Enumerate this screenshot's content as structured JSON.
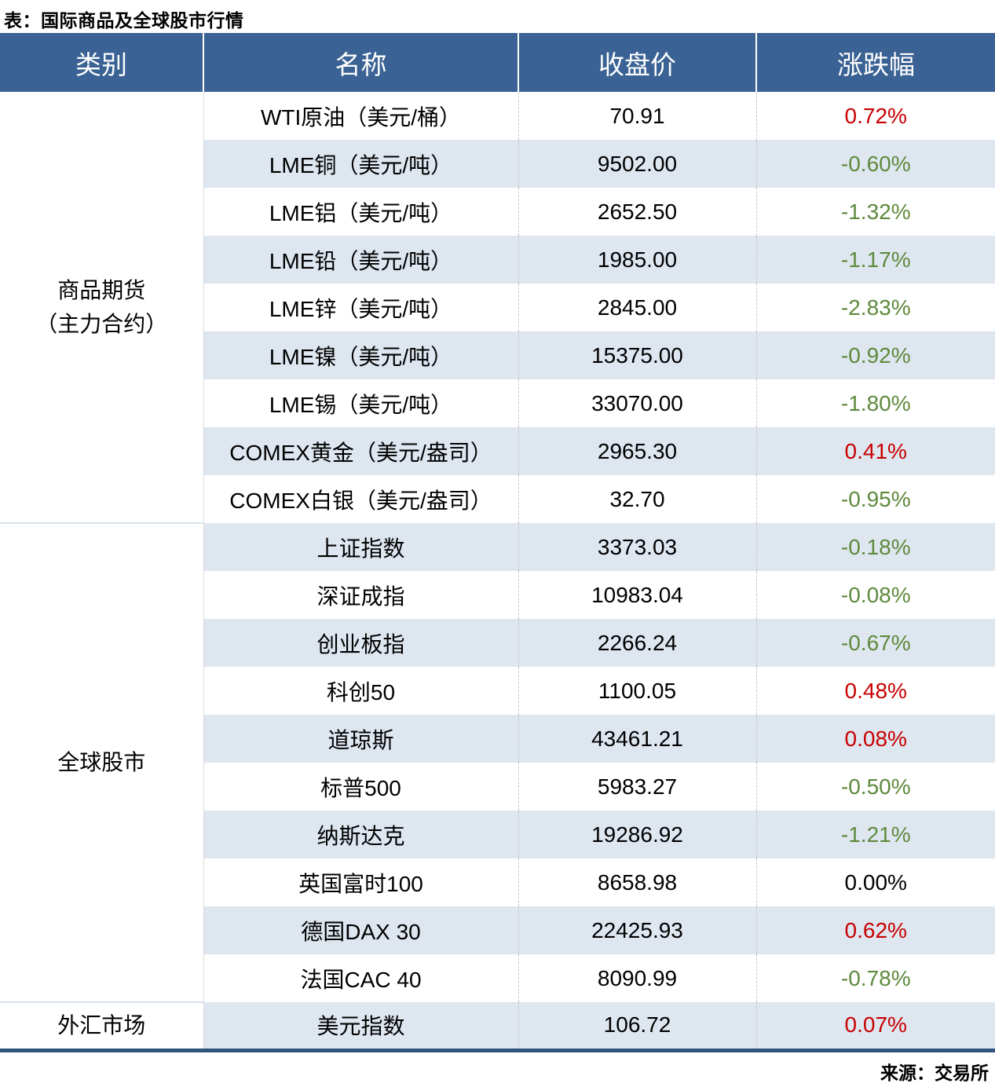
{
  "title": "表：国际商品及全球股市行情",
  "source": "来源：交易所",
  "colors": {
    "header_bg": "#3A6294",
    "stripe_row": "#DEE6F0",
    "up_red": "#C80000",
    "down_green": "#5E8A3C",
    "bottom_border": "#2F567A"
  },
  "table": {
    "headers": [
      "类别",
      "名称",
      "收盘价",
      "涨跌幅"
    ],
    "groups": [
      {
        "category_lines": [
          "商品期货",
          "（主力合约）"
        ],
        "rows": [
          {
            "name": "WTI原油（美元/桶）",
            "close": "70.91",
            "change": "0.72%",
            "direction": "up"
          },
          {
            "name": "LME铜（美元/吨）",
            "close": "9502.00",
            "change": "-0.60%",
            "direction": "down"
          },
          {
            "name": "LME铝（美元/吨）",
            "close": "2652.50",
            "change": "-1.32%",
            "direction": "down"
          },
          {
            "name": "LME铅（美元/吨）",
            "close": "1985.00",
            "change": "-1.17%",
            "direction": "down"
          },
          {
            "name": "LME锌（美元/吨）",
            "close": "2845.00",
            "change": "-2.83%",
            "direction": "down"
          },
          {
            "name": "LME镍（美元/吨）",
            "close": "15375.00",
            "change": "-0.92%",
            "direction": "down"
          },
          {
            "name": "LME锡（美元/吨）",
            "close": "33070.00",
            "change": "-1.80%",
            "direction": "down"
          },
          {
            "name": "COMEX黄金（美元/盎司）",
            "close": "2965.30",
            "change": "0.41%",
            "direction": "up"
          },
          {
            "name": "COMEX白银（美元/盎司）",
            "close": "32.70",
            "change": "-0.95%",
            "direction": "down"
          }
        ]
      },
      {
        "category_lines": [
          "全球股市"
        ],
        "rows": [
          {
            "name": "上证指数",
            "close": "3373.03",
            "change": "-0.18%",
            "direction": "down"
          },
          {
            "name": "深证成指",
            "close": "10983.04",
            "change": "-0.08%",
            "direction": "down"
          },
          {
            "name": "创业板指",
            "close": "2266.24",
            "change": "-0.67%",
            "direction": "down"
          },
          {
            "name": "科创50",
            "close": "1100.05",
            "change": "0.48%",
            "direction": "up"
          },
          {
            "name": "道琼斯",
            "close": "43461.21",
            "change": "0.08%",
            "direction": "up"
          },
          {
            "name": "标普500",
            "close": "5983.27",
            "change": "-0.50%",
            "direction": "down"
          },
          {
            "name": "纳斯达克",
            "close": "19286.92",
            "change": "-1.21%",
            "direction": "down"
          },
          {
            "name": "英国富时100",
            "close": "8658.98",
            "change": "0.00%",
            "direction": "flat"
          },
          {
            "name": "德国DAX 30",
            "close": "22425.93",
            "change": "0.62%",
            "direction": "up"
          },
          {
            "name": "法国CAC 40",
            "close": "8090.99",
            "change": "-0.78%",
            "direction": "down"
          }
        ]
      },
      {
        "category_lines": [
          "外汇市场"
        ],
        "rows": [
          {
            "name": "美元指数",
            "close": "106.72",
            "change": "0.07%",
            "direction": "up"
          }
        ]
      }
    ]
  },
  "chart_data": {
    "type": "table",
    "title": "表：国际商品及全球股市行情",
    "columns": [
      "类别",
      "名称",
      "收盘价",
      "涨跌幅"
    ],
    "rows": [
      [
        "商品期货（主力合约）",
        "WTI原油（美元/桶）",
        70.91,
        "0.72%"
      ],
      [
        "商品期货（主力合约）",
        "LME铜（美元/吨）",
        9502.0,
        "-0.60%"
      ],
      [
        "商品期货（主力合约）",
        "LME铝（美元/吨）",
        2652.5,
        "-1.32%"
      ],
      [
        "商品期货（主力合约）",
        "LME铅（美元/吨）",
        1985.0,
        "-1.17%"
      ],
      [
        "商品期货（主力合约）",
        "LME锌（美元/吨）",
        2845.0,
        "-2.83%"
      ],
      [
        "商品期货（主力合约）",
        "LME镍（美元/吨）",
        15375.0,
        "-0.92%"
      ],
      [
        "商品期货（主力合约）",
        "LME锡（美元/吨）",
        33070.0,
        "-1.80%"
      ],
      [
        "商品期货（主力合约）",
        "COMEX黄金（美元/盎司）",
        2965.3,
        "0.41%"
      ],
      [
        "商品期货（主力合约）",
        "COMEX白银（美元/盎司）",
        32.7,
        "-0.95%"
      ],
      [
        "全球股市",
        "上证指数",
        3373.03,
        "-0.18%"
      ],
      [
        "全球股市",
        "深证成指",
        10983.04,
        "-0.08%"
      ],
      [
        "全球股市",
        "创业板指",
        2266.24,
        "-0.67%"
      ],
      [
        "全球股市",
        "科创50",
        1100.05,
        "0.48%"
      ],
      [
        "全球股市",
        "道琼斯",
        43461.21,
        "0.08%"
      ],
      [
        "全球股市",
        "标普500",
        5983.27,
        "-0.50%"
      ],
      [
        "全球股市",
        "纳斯达克",
        19286.92,
        "-1.21%"
      ],
      [
        "全球股市",
        "英国富时100",
        8658.98,
        "0.00%"
      ],
      [
        "全球股市",
        "德国DAX 30",
        22425.93,
        "0.62%"
      ],
      [
        "全球股市",
        "法国CAC 40",
        8090.99,
        "-0.78%"
      ],
      [
        "外汇市场",
        "美元指数",
        106.72,
        "0.07%"
      ]
    ],
    "source_note": "来源：交易所"
  }
}
